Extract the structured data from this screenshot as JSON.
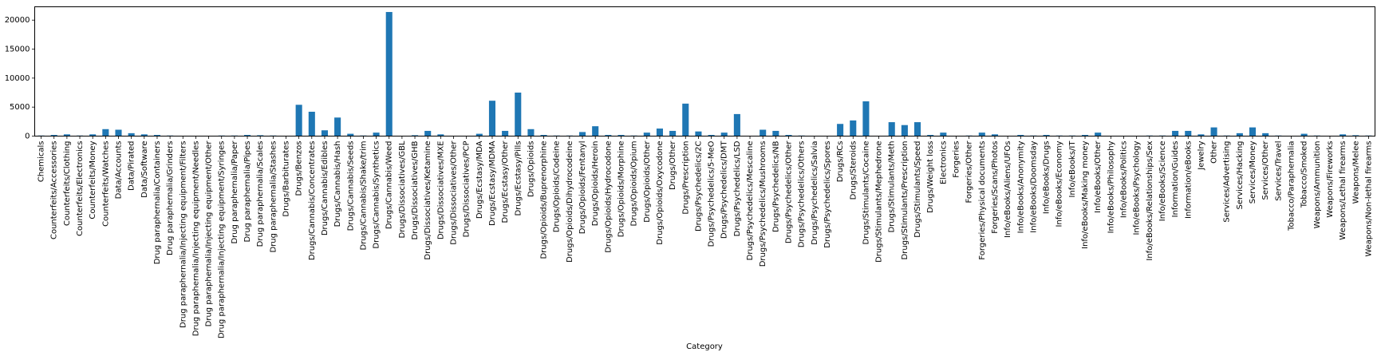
{
  "chart_data": {
    "type": "bar",
    "xlabel": "Category",
    "ylabel": "",
    "ylim": [
      0,
      22300
    ],
    "yticks": [
      0,
      5000,
      10000,
      15000,
      20000
    ],
    "ytick_labels": [
      "0",
      "5000",
      "10000",
      "15000",
      "20000"
    ],
    "grid": false,
    "bar_color": "#1f77b4",
    "categories": [
      "Chemicals",
      "Counterfeits/Accessories",
      "Counterfeits/Clothing",
      "Counterfeits/Electronics",
      "Counterfeits/Money",
      "Counterfeits/Watches",
      "Data/Accounts",
      "Data/Pirated",
      "Data/Software",
      "Drug paraphernalia/Containers",
      "Drug paraphernalia/Grinders",
      "Drug paraphernalia/Injecting equipment/Filters",
      "Drug paraphernalia/Injecting equipment/Needles",
      "Drug paraphernalia/Injecting equipment/Other",
      "Drug paraphernalia/Injecting equipment/Syringes",
      "Drug paraphernalia/Paper",
      "Drug paraphernalia/Pipes",
      "Drug paraphernalia/Scales",
      "Drug paraphernalia/Stashes",
      "Drugs/Barbiturates",
      "Drugs/Benzos",
      "Drugs/Cannabis/Concentrates",
      "Drugs/Cannabis/Edibles",
      "Drugs/Cannabis/Hash",
      "Drugs/Cannabis/Seeds",
      "Drugs/Cannabis/Shake/trim",
      "Drugs/Cannabis/Synthetics",
      "Drugs/Cannabis/Weed",
      "Drugs/Dissociatives/GBL",
      "Drugs/Dissociatives/GHB",
      "Drugs/Dissociatives/Ketamine",
      "Drugs/Dissociatives/MXE",
      "Drugs/Dissociatives/Other",
      "Drugs/Dissociatives/PCP",
      "Drugs/Ecstasy/MDA",
      "Drugs/Ecstasy/MDMA",
      "Drugs/Ecstasy/Other",
      "Drugs/Ecstasy/Pills",
      "Drugs/Opioids",
      "Drugs/Opioids/Buprenorphine",
      "Drugs/Opioids/Codeine",
      "Drugs/Opioids/Dihydrocodeine",
      "Drugs/Opioids/Fentanyl",
      "Drugs/Opioids/Heroin",
      "Drugs/Opioids/Hydrocodone",
      "Drugs/Opioids/Morphine",
      "Drugs/Opioids/Opium",
      "Drugs/Opioids/Other",
      "Drugs/Opioids/Oxycodone",
      "Drugs/Other",
      "Drugs/Prescription",
      "Drugs/Psychedelics/2C",
      "Drugs/Psychedelics/5-MeO",
      "Drugs/Psychedelics/DMT",
      "Drugs/Psychedelics/LSD",
      "Drugs/Psychedelics/Mescaline",
      "Drugs/Psychedelics/Mushrooms",
      "Drugs/Psychedelics/NB",
      "Drugs/Psychedelics/Other",
      "Drugs/Psychedelics/Others",
      "Drugs/Psychedelics/Salvia",
      "Drugs/Psychedelics/Spores",
      "Drugs/RCs",
      "Drugs/Steroids",
      "Drugs/Stimulants/Cocaine",
      "Drugs/Stimulants/Mephedrone",
      "Drugs/Stimulants/Meth",
      "Drugs/Stimulants/Prescription",
      "Drugs/Stimulants/Speed",
      "Drugs/Weight loss",
      "Electronics",
      "Forgeries",
      "Forgeries/Other",
      "Forgeries/Physical documents",
      "Forgeries/Scans/Photos",
      "Info/eBooks/Aliens/UFOs",
      "Info/eBooks/Anonymity",
      "Info/eBooks/Doomsday",
      "Info/eBooks/Drugs",
      "Info/eBooks/Economy",
      "Info/eBooks/IT",
      "Info/eBooks/Making money",
      "Info/eBooks/Other",
      "Info/eBooks/Philosophy",
      "Info/eBooks/Politics",
      "Info/eBooks/Psychology",
      "Info/eBooks/Relationships/Sex",
      "Info/eBooks/Science",
      "Information/Guides",
      "Information/eBooks",
      "Jewelry",
      "Other",
      "Services/Advertising",
      "Services/Hacking",
      "Services/Money",
      "Services/Other",
      "Services/Travel",
      "Tobacco/Paraphernalia",
      "Tobacco/Smoked",
      "Weapons/Ammunition",
      "Weapons/Fireworks",
      "Weapons/Lethal firearms",
      "Weapons/Melee",
      "Weapons/Non-lethal firearms"
    ],
    "values": [
      100,
      200,
      300,
      100,
      300,
      1200,
      1100,
      500,
      300,
      200,
      100,
      20,
      20,
      20,
      100,
      100,
      200,
      150,
      100,
      50,
      5400,
      4200,
      1000,
      3200,
      400,
      100,
      600,
      21400,
      50,
      150,
      900,
      300,
      50,
      50,
      400,
      6100,
      900,
      7500,
      1200,
      200,
      100,
      100,
      700,
      1700,
      200,
      200,
      100,
      600,
      1300,
      900,
      5600,
      800,
      200,
      600,
      3800,
      50,
      1100,
      900,
      200,
      100,
      50,
      50,
      2100,
      2700,
      6000,
      50,
      2400,
      1900,
      2400,
      200,
      600,
      50,
      100,
      600,
      300,
      50,
      200,
      100,
      200,
      100,
      100,
      200,
      600,
      50,
      50,
      50,
      100,
      100,
      900,
      900,
      300,
      1500,
      100,
      500,
      1500,
      500,
      100,
      50,
      400,
      100,
      50,
      300,
      150,
      100
    ]
  }
}
